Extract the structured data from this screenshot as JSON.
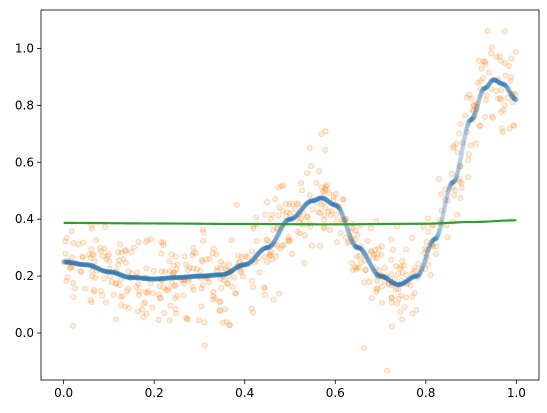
{
  "chart_data": {
    "type": "scatter",
    "title": "",
    "xlabel": "",
    "ylabel": "",
    "xlim": [
      -0.05,
      1.05
    ],
    "ylim": [
      -0.165,
      1.135
    ],
    "grid": false,
    "legend": "none",
    "x_ticks": [
      {
        "value": 0.0,
        "label": "0.0"
      },
      {
        "value": 0.2,
        "label": "0.2"
      },
      {
        "value": 0.4,
        "label": "0.4"
      },
      {
        "value": 0.6,
        "label": "0.6"
      },
      {
        "value": 0.8,
        "label": "0.8"
      },
      {
        "value": 1.0,
        "label": "1.0"
      }
    ],
    "y_ticks": [
      {
        "value": 0.0,
        "label": "0.0"
      },
      {
        "value": 0.2,
        "label": "0.2"
      },
      {
        "value": 0.4,
        "label": "0.4"
      },
      {
        "value": 0.6,
        "label": "0.6"
      },
      {
        "value": 0.8,
        "label": "0.8"
      },
      {
        "value": 1.0,
        "label": "1.0"
      }
    ],
    "series": [
      {
        "kind": "scatter",
        "color": "#ff7f0e",
        "opacity": 0.25,
        "approx_points": 600,
        "noise_sd": 0.08,
        "follows": "true-curve"
      },
      {
        "kind": "line",
        "role": "true-curve",
        "color": "#1f77b4",
        "opacity": 0.45,
        "x": [
          0.0,
          0.05,
          0.1,
          0.15,
          0.2,
          0.25,
          0.3,
          0.35,
          0.4,
          0.45,
          0.5,
          0.55,
          0.57,
          0.6,
          0.65,
          0.7,
          0.74,
          0.78,
          0.82,
          0.86,
          0.9,
          0.93,
          0.95,
          0.97,
          1.0
        ],
        "y": [
          0.25,
          0.24,
          0.215,
          0.195,
          0.19,
          0.195,
          0.2,
          0.205,
          0.24,
          0.3,
          0.4,
          0.465,
          0.475,
          0.45,
          0.3,
          0.2,
          0.17,
          0.2,
          0.33,
          0.53,
          0.75,
          0.86,
          0.89,
          0.875,
          0.82
        ]
      },
      {
        "kind": "line",
        "role": "flat-fit",
        "color": "#2ca02c",
        "opacity": 1.0,
        "x": [
          0.0,
          0.2,
          0.4,
          0.6,
          0.8,
          0.9,
          1.0
        ],
        "y": [
          0.387,
          0.385,
          0.383,
          0.382,
          0.384,
          0.39,
          0.396
        ]
      }
    ]
  }
}
